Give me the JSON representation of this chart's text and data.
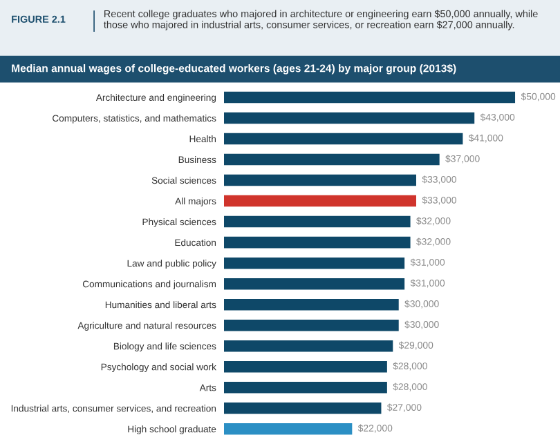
{
  "chart_data": {
    "type": "bar",
    "orientation": "horizontal",
    "annotations": [
      "FIGURE 2.1"
    ],
    "subtitle": "Recent college graduates who majored in architecture or engineering earn $50,000 annually, while those who majored in industrial arts, consumer services, or recreation earn $27,000 annually.",
    "title": "Median annual wages of college-educated workers (ages 21-24) by major group (2013$)",
    "categories": [
      "Architecture and engineering",
      "Computers, statistics, and mathematics",
      "Health",
      "Business",
      "Social sciences",
      "All majors",
      "Physical sciences",
      "Education",
      "Law and public policy",
      "Communications and journalism",
      "Humanities and liberal arts",
      "Agriculture and natural resources",
      "Biology and life sciences",
      "Psychology and social work",
      "Arts",
      "Industrial arts, consumer services, and recreation",
      "High school graduate"
    ],
    "values": [
      50000,
      43000,
      41000,
      37000,
      33000,
      33000,
      32000,
      32000,
      31000,
      31000,
      30000,
      30000,
      29000,
      28000,
      28000,
      27000,
      22000
    ],
    "value_labels": [
      "$50,000",
      "$43,000",
      "$41,000",
      "$37,000",
      "$33,000",
      "$33,000",
      "$32,000",
      "$32,000",
      "$31,000",
      "$31,000",
      "$30,000",
      "$30,000",
      "$29,000",
      "$28,000",
      "$28,000",
      "$27,000",
      "$22,000"
    ],
    "colors": [
      "#0e4868",
      "#0e4868",
      "#0e4868",
      "#0e4868",
      "#0e4868",
      "#d0342c",
      "#0e4868",
      "#0e4868",
      "#0e4868",
      "#0e4868",
      "#0e4868",
      "#0e4868",
      "#0e4868",
      "#0e4868",
      "#0e4868",
      "#0e4868",
      "#2b8fc4"
    ],
    "xlim": [
      0,
      50000
    ],
    "tick_labels": "y",
    "grid": false,
    "legend": false
  }
}
